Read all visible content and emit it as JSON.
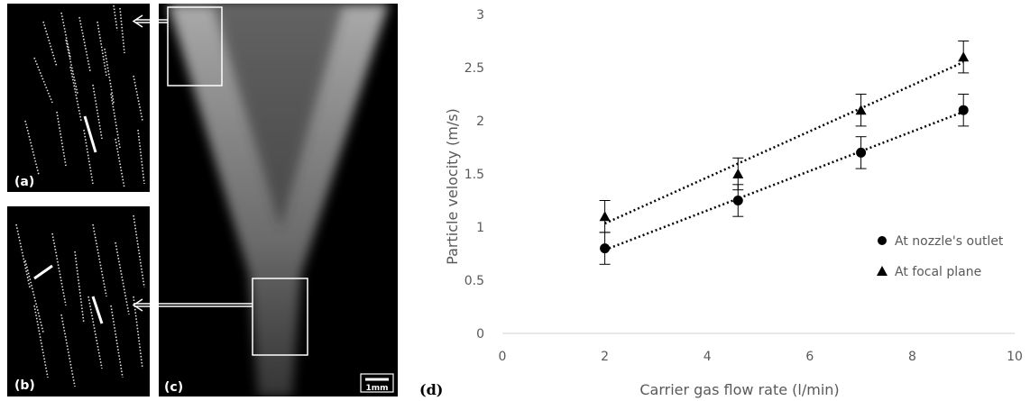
{
  "panels": {
    "a_label": "(a)",
    "b_label": "(b)",
    "c_label": "(c)",
    "d_label": "(d)",
    "scale_bar": "1mm"
  },
  "chart_data": {
    "type": "scatter",
    "xlabel": "Carrier gas flow rate (l/min)",
    "ylabel": "Particle velocity (m/s)",
    "xlim": [
      0,
      10
    ],
    "ylim": [
      0,
      3
    ],
    "xticks": [
      0,
      2,
      4,
      6,
      8,
      10
    ],
    "yticks": [
      0,
      0.5,
      1,
      1.5,
      2,
      2.5,
      3
    ],
    "tick_labels_x": [
      "0",
      "2",
      "4",
      "6",
      "8",
      "10"
    ],
    "tick_labels_y": [
      "0",
      "0.5",
      "1",
      "1.5",
      "2",
      "2.5",
      "3"
    ],
    "legend_position": "right",
    "grid": false,
    "trendlines": "linear, dotted",
    "series": [
      {
        "name": "At nozzle's outlet",
        "marker": "circle",
        "x": [
          2,
          4.6,
          7,
          9
        ],
        "y": [
          0.8,
          1.25,
          1.7,
          2.1
        ],
        "err": [
          0.15,
          0.15,
          0.15,
          0.15
        ]
      },
      {
        "name": "At focal plane",
        "marker": "triangle",
        "x": [
          2,
          4.6,
          7,
          9
        ],
        "y": [
          1.1,
          1.5,
          2.1,
          2.6
        ],
        "err": [
          0.15,
          0.15,
          0.15,
          0.15
        ]
      }
    ],
    "colors": {
      "marker": "#000000",
      "axis": "#d9d9d9",
      "text": "#595959"
    }
  }
}
